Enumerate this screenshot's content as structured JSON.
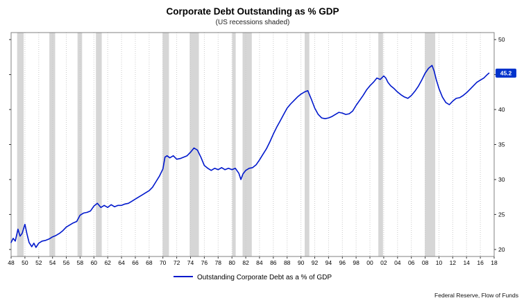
{
  "chart": {
    "title": "Corporate Debt Outstanding as % GDP",
    "subtitle": "(US recessions shaded)",
    "legend_label": "Outstanding Corporate Debt as a % of GDP",
    "source": "Federal Reserve, Flow of Funds"
  },
  "chart_data": {
    "type": "line",
    "title": "Corporate Debt Outstanding as % GDP",
    "subtitle": "(US recessions shaded)",
    "legend": [
      "Outstanding Corporate Debt as a % of GDP"
    ],
    "legend_position": "bottom-center",
    "grid": "vertical-dotted",
    "xlabel": "",
    "ylabel": "",
    "xlim": [
      1948,
      2018
    ],
    "ylim": [
      20,
      50
    ],
    "y_ticks": [
      20,
      25,
      30,
      35,
      40,
      45,
      50
    ],
    "x_ticks": [
      {
        "year": 1948,
        "label": "48"
      },
      {
        "year": 1950,
        "label": "50"
      },
      {
        "year": 1952,
        "label": "52"
      },
      {
        "year": 1954,
        "label": "54"
      },
      {
        "year": 1956,
        "label": "56"
      },
      {
        "year": 1958,
        "label": "58"
      },
      {
        "year": 1960,
        "label": "60"
      },
      {
        "year": 1962,
        "label": "62"
      },
      {
        "year": 1964,
        "label": "64"
      },
      {
        "year": 1966,
        "label": "66"
      },
      {
        "year": 1968,
        "label": "68"
      },
      {
        "year": 1970,
        "label": "70"
      },
      {
        "year": 1972,
        "label": "72"
      },
      {
        "year": 1974,
        "label": "74"
      },
      {
        "year": 1976,
        "label": "76"
      },
      {
        "year": 1978,
        "label": "78"
      },
      {
        "year": 1980,
        "label": "80"
      },
      {
        "year": 1982,
        "label": "82"
      },
      {
        "year": 1984,
        "label": "84"
      },
      {
        "year": 1986,
        "label": "86"
      },
      {
        "year": 1988,
        "label": "88"
      },
      {
        "year": 1990,
        "label": "90"
      },
      {
        "year": 1992,
        "label": "92"
      },
      {
        "year": 1994,
        "label": "94"
      },
      {
        "year": 1996,
        "label": "96"
      },
      {
        "year": 1998,
        "label": "98"
      },
      {
        "year": 2000,
        "label": "00"
      },
      {
        "year": 2002,
        "label": "02"
      },
      {
        "year": 2004,
        "label": "04"
      },
      {
        "year": 2006,
        "label": "06"
      },
      {
        "year": 2008,
        "label": "08"
      },
      {
        "year": 2010,
        "label": "10"
      },
      {
        "year": 2012,
        "label": "12"
      },
      {
        "year": 2014,
        "label": "14"
      },
      {
        "year": 2016,
        "label": "16"
      },
      {
        "year": 2018,
        "label": "18"
      }
    ],
    "recessions": [
      [
        1948.88,
        1949.83
      ],
      [
        1953.54,
        1954.38
      ],
      [
        1957.63,
        1958.29
      ],
      [
        1960.29,
        1961.13
      ],
      [
        1969.96,
        1970.88
      ],
      [
        1973.88,
        1975.21
      ],
      [
        1980.04,
        1980.54
      ],
      [
        1981.54,
        1982.88
      ],
      [
        1990.54,
        1991.21
      ],
      [
        2001.21,
        2001.88
      ],
      [
        2007.96,
        2009.46
      ]
    ],
    "series": [
      [
        1948.0,
        21.0
      ],
      [
        1948.3,
        21.6
      ],
      [
        1948.6,
        21.2
      ],
      [
        1949.0,
        22.9
      ],
      [
        1949.3,
        21.9
      ],
      [
        1949.6,
        22.3
      ],
      [
        1950.0,
        23.6
      ],
      [
        1950.3,
        22.2
      ],
      [
        1950.6,
        21.0
      ],
      [
        1951.0,
        20.4
      ],
      [
        1951.3,
        20.9
      ],
      [
        1951.6,
        20.3
      ],
      [
        1952.0,
        20.9
      ],
      [
        1952.5,
        21.2
      ],
      [
        1953.0,
        21.3
      ],
      [
        1953.5,
        21.5
      ],
      [
        1954.0,
        21.8
      ],
      [
        1954.5,
        22.0
      ],
      [
        1955.0,
        22.3
      ],
      [
        1955.5,
        22.7
      ],
      [
        1956.0,
        23.2
      ],
      [
        1956.5,
        23.5
      ],
      [
        1957.0,
        23.8
      ],
      [
        1957.5,
        24.0
      ],
      [
        1958.0,
        24.9
      ],
      [
        1958.5,
        25.2
      ],
      [
        1959.0,
        25.3
      ],
      [
        1959.5,
        25.5
      ],
      [
        1960.0,
        26.2
      ],
      [
        1960.5,
        26.6
      ],
      [
        1961.0,
        26.0
      ],
      [
        1961.5,
        26.3
      ],
      [
        1962.0,
        26.0
      ],
      [
        1962.5,
        26.4
      ],
      [
        1963.0,
        26.1
      ],
      [
        1963.5,
        26.3
      ],
      [
        1964.0,
        26.3
      ],
      [
        1964.5,
        26.5
      ],
      [
        1965.0,
        26.6
      ],
      [
        1965.5,
        26.9
      ],
      [
        1966.0,
        27.2
      ],
      [
        1966.5,
        27.5
      ],
      [
        1967.0,
        27.8
      ],
      [
        1967.5,
        28.1
      ],
      [
        1968.0,
        28.4
      ],
      [
        1968.5,
        28.9
      ],
      [
        1969.0,
        29.7
      ],
      [
        1969.5,
        30.5
      ],
      [
        1970.0,
        31.5
      ],
      [
        1970.3,
        33.2
      ],
      [
        1970.6,
        33.4
      ],
      [
        1971.0,
        33.1
      ],
      [
        1971.5,
        33.4
      ],
      [
        1972.0,
        32.9
      ],
      [
        1972.5,
        33.0
      ],
      [
        1973.0,
        33.2
      ],
      [
        1973.5,
        33.4
      ],
      [
        1974.0,
        33.9
      ],
      [
        1974.5,
        34.5
      ],
      [
        1975.0,
        34.2
      ],
      [
        1975.5,
        33.2
      ],
      [
        1976.0,
        32.0
      ],
      [
        1976.5,
        31.6
      ],
      [
        1977.0,
        31.3
      ],
      [
        1977.5,
        31.6
      ],
      [
        1978.0,
        31.4
      ],
      [
        1978.5,
        31.7
      ],
      [
        1979.0,
        31.4
      ],
      [
        1979.5,
        31.6
      ],
      [
        1980.0,
        31.4
      ],
      [
        1980.5,
        31.6
      ],
      [
        1981.0,
        30.9
      ],
      [
        1981.3,
        30.0
      ],
      [
        1981.6,
        30.8
      ],
      [
        1982.0,
        31.3
      ],
      [
        1982.5,
        31.6
      ],
      [
        1983.0,
        31.7
      ],
      [
        1983.5,
        32.1
      ],
      [
        1984.0,
        32.8
      ],
      [
        1984.5,
        33.6
      ],
      [
        1985.0,
        34.4
      ],
      [
        1985.5,
        35.4
      ],
      [
        1986.0,
        36.5
      ],
      [
        1986.5,
        37.5
      ],
      [
        1987.0,
        38.4
      ],
      [
        1987.5,
        39.3
      ],
      [
        1988.0,
        40.2
      ],
      [
        1988.5,
        40.8
      ],
      [
        1989.0,
        41.3
      ],
      [
        1989.5,
        41.8
      ],
      [
        1990.0,
        42.2
      ],
      [
        1990.5,
        42.5
      ],
      [
        1991.0,
        42.7
      ],
      [
        1991.5,
        41.5
      ],
      [
        1992.0,
        40.2
      ],
      [
        1992.5,
        39.3
      ],
      [
        1993.0,
        38.8
      ],
      [
        1993.5,
        38.7
      ],
      [
        1994.0,
        38.8
      ],
      [
        1994.5,
        39.0
      ],
      [
        1995.0,
        39.3
      ],
      [
        1995.5,
        39.6
      ],
      [
        1996.0,
        39.5
      ],
      [
        1996.5,
        39.3
      ],
      [
        1997.0,
        39.4
      ],
      [
        1997.5,
        39.8
      ],
      [
        1998.0,
        40.6
      ],
      [
        1998.5,
        41.3
      ],
      [
        1999.0,
        42.0
      ],
      [
        1999.5,
        42.8
      ],
      [
        2000.0,
        43.4
      ],
      [
        2000.5,
        43.9
      ],
      [
        2001.0,
        44.5
      ],
      [
        2001.5,
        44.3
      ],
      [
        2002.0,
        44.8
      ],
      [
        2002.3,
        44.5
      ],
      [
        2002.6,
        43.9
      ],
      [
        2003.0,
        43.4
      ],
      [
        2003.5,
        43.0
      ],
      [
        2004.0,
        42.5
      ],
      [
        2004.5,
        42.1
      ],
      [
        2005.0,
        41.8
      ],
      [
        2005.5,
        41.6
      ],
      [
        2006.0,
        42.0
      ],
      [
        2006.5,
        42.6
      ],
      [
        2007.0,
        43.3
      ],
      [
        2007.5,
        44.2
      ],
      [
        2008.0,
        45.2
      ],
      [
        2008.5,
        45.9
      ],
      [
        2009.0,
        46.3
      ],
      [
        2009.3,
        45.5
      ],
      [
        2009.6,
        44.3
      ],
      [
        2010.0,
        43.0
      ],
      [
        2010.5,
        41.8
      ],
      [
        2011.0,
        41.0
      ],
      [
        2011.5,
        40.7
      ],
      [
        2012.0,
        41.2
      ],
      [
        2012.5,
        41.6
      ],
      [
        2013.0,
        41.7
      ],
      [
        2013.5,
        42.0
      ],
      [
        2014.0,
        42.4
      ],
      [
        2014.5,
        42.9
      ],
      [
        2015.0,
        43.4
      ],
      [
        2015.5,
        43.9
      ],
      [
        2016.0,
        44.2
      ],
      [
        2016.5,
        44.5
      ],
      [
        2017.0,
        45.0
      ],
      [
        2017.25,
        45.2
      ]
    ],
    "last_value": 45.2,
    "last_value_label": "45.2",
    "colors": {
      "line": "#0018cc",
      "badge": "#0033cc",
      "recession": "#d6d6d6",
      "grid": "#c9c9c9",
      "frame": "#808080",
      "tick": "#333333"
    }
  }
}
